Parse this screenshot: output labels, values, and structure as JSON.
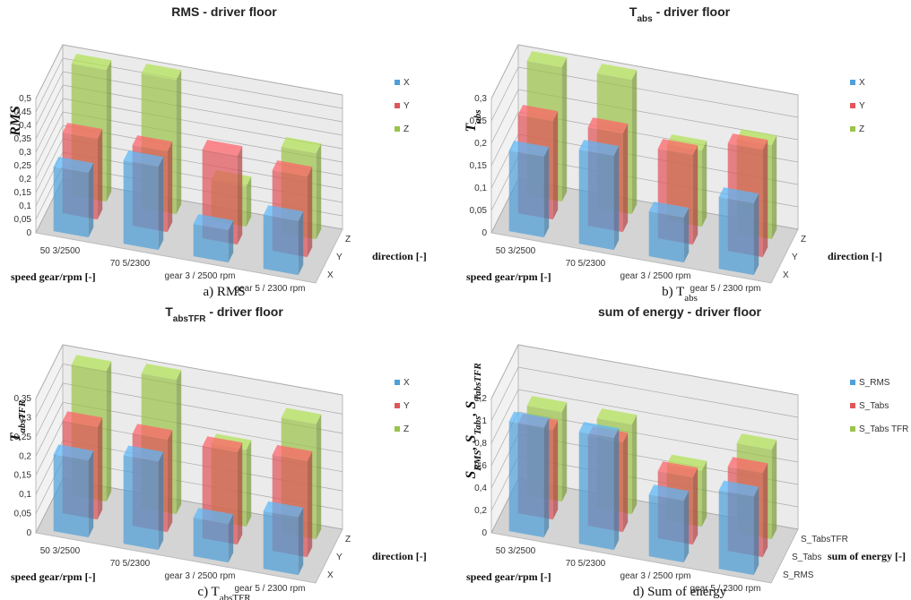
{
  "chart_data": [
    {
      "type": "bar3d",
      "title": [
        "RMS - driver floor"
      ],
      "y_label": [
        "RMS"
      ],
      "x_label": "speed gear/rpm [-]",
      "z_label": "direction [-]",
      "caption": [
        "a) RMS"
      ],
      "categories": [
        "50 3/2500",
        "70 5/2300",
        "gear 3 / 2500 rpm",
        "gear 5 / 2300 rpm"
      ],
      "depth_labels": [
        "X",
        "Y",
        "Z"
      ],
      "series": [
        {
          "name": "X",
          "color": "#4f9fd8",
          "values": [
            0.24,
            0.31,
            0.12,
            0.2
          ]
        },
        {
          "name": "Y",
          "color": "#e0555a",
          "values": [
            0.3,
            0.3,
            0.33,
            0.3
          ]
        },
        {
          "name": "Z",
          "color": "#9bc44a",
          "values": [
            0.49,
            0.5,
            0.15,
            0.32
          ]
        }
      ],
      "ylim": [
        0,
        0.5
      ],
      "yticks": [
        0,
        {
          "value": 0.05,
          "label": "0,05"
        },
        {
          "value": 0.1,
          "label": "0,1"
        },
        {
          "value": 0.15,
          "label": "0,15"
        },
        {
          "value": 0.2,
          "label": "0,2"
        },
        {
          "value": 0.25,
          "label": "0,25"
        },
        {
          "value": 0.3,
          "label": "0,3"
        },
        {
          "value": 0.35,
          "label": "0,35"
        },
        {
          "value": 0.4,
          "label": "0,4"
        },
        {
          "value": 0.45,
          "label": "0,45"
        },
        {
          "value": 0.5,
          "label": "0,5"
        }
      ]
    },
    {
      "type": "bar3d",
      "title": [
        "T",
        "abs",
        " - driver floor"
      ],
      "y_label": [
        "T",
        "abs"
      ],
      "x_label": "speed gear/rpm [-]",
      "z_label": "direction [-]",
      "caption": [
        "b) T",
        "abs"
      ],
      "categories": [
        "50 3/2500",
        "70 5/2300",
        "gear 3 / 2500 rpm",
        "gear 5 / 2300 rpm"
      ],
      "depth_labels": [
        "X",
        "Y",
        "Z"
      ],
      "series": [
        {
          "name": "X",
          "color": "#4f9fd8",
          "values": [
            0.18,
            0.21,
            0.1,
            0.16
          ]
        },
        {
          "name": "Y",
          "color": "#e0555a",
          "values": [
            0.22,
            0.22,
            0.2,
            0.24
          ]
        },
        {
          "name": "Z",
          "color": "#9bc44a",
          "values": [
            0.3,
            0.3,
            0.17,
            0.21
          ]
        }
      ],
      "ylim": [
        0,
        0.3
      ],
      "yticks": [
        0,
        {
          "value": 0.05,
          "label": "0,05"
        },
        {
          "value": 0.1,
          "label": "0,1"
        },
        {
          "value": 0.15,
          "label": "0,15"
        },
        {
          "value": 0.2,
          "label": "0,2"
        },
        {
          "value": 0.25,
          "label": "0,25"
        },
        {
          "value": 0.3,
          "label": "0,3"
        }
      ]
    },
    {
      "type": "bar3d",
      "title": [
        "T",
        "absTFR",
        " - driver floor"
      ],
      "y_label": [
        "T",
        "absTFR"
      ],
      "x_label": "speed gear/rpm [-]",
      "z_label": "direction [-]",
      "caption": [
        "c) T",
        "absTFR"
      ],
      "categories": [
        "50 3/2500",
        "70 5/2300",
        "gear 3 / 2500 rpm",
        "gear 5 / 2300 rpm"
      ],
      "depth_labels": [
        "X",
        "Y",
        "Z"
      ],
      "series": [
        {
          "name": "X",
          "color": "#4f9fd8",
          "values": [
            0.2,
            0.23,
            0.1,
            0.15
          ]
        },
        {
          "name": "Y",
          "color": "#e0555a",
          "values": [
            0.24,
            0.24,
            0.24,
            0.25
          ]
        },
        {
          "name": "Z",
          "color": "#9bc44a",
          "values": [
            0.34,
            0.35,
            0.2,
            0.3
          ]
        }
      ],
      "ylim": [
        0,
        0.35
      ],
      "yticks": [
        0,
        {
          "value": 0.05,
          "label": "0,05"
        },
        {
          "value": 0.1,
          "label": "0,1"
        },
        {
          "value": 0.15,
          "label": "0,15"
        },
        {
          "value": 0.2,
          "label": "0,2"
        },
        {
          "value": 0.25,
          "label": "0,25"
        },
        {
          "value": 0.3,
          "label": "0,3"
        },
        {
          "value": 0.35,
          "label": "0,35"
        }
      ]
    },
    {
      "type": "bar3d",
      "title": [
        "sum of energy - driver floor"
      ],
      "y_label": [
        "S",
        "RMS",
        ", S",
        "Tabs",
        ", S",
        "TabsTFR"
      ],
      "x_label": "speed gear/rpm [-]",
      "z_label": "sum of energy [-]",
      "caption": [
        "d) Sum of energy"
      ],
      "categories": [
        "50 3/2500",
        "70 5/2300",
        "gear 3 / 2500 rpm",
        "gear 5 / 2300 rpm"
      ],
      "depth_labels": [
        "S_RMS",
        "S_Tabs",
        "S_TabsTFR"
      ],
      "series": [
        {
          "name": "S_RMS",
          "color": "#4f9fd8",
          "values": [
            0.98,
            1.0,
            0.55,
            0.7
          ]
        },
        {
          "name": "S_Tabs",
          "color": "#e0555a",
          "values": [
            0.8,
            0.8,
            0.6,
            0.75
          ]
        },
        {
          "name": "S_Tabs TFR",
          "color": "#9bc44a",
          "values": [
            0.8,
            0.8,
            0.5,
            0.8
          ]
        }
      ],
      "ylim": [
        0,
        1.2
      ],
      "yticks": [
        0,
        {
          "value": 0.2,
          "label": "0,2"
        },
        {
          "value": 0.4,
          "label": "0,4"
        },
        {
          "value": 0.6,
          "label": "0,6"
        },
        {
          "value": 0.8,
          "label": "0,8"
        },
        1,
        {
          "value": 1.2,
          "label": "1,2"
        }
      ]
    }
  ]
}
